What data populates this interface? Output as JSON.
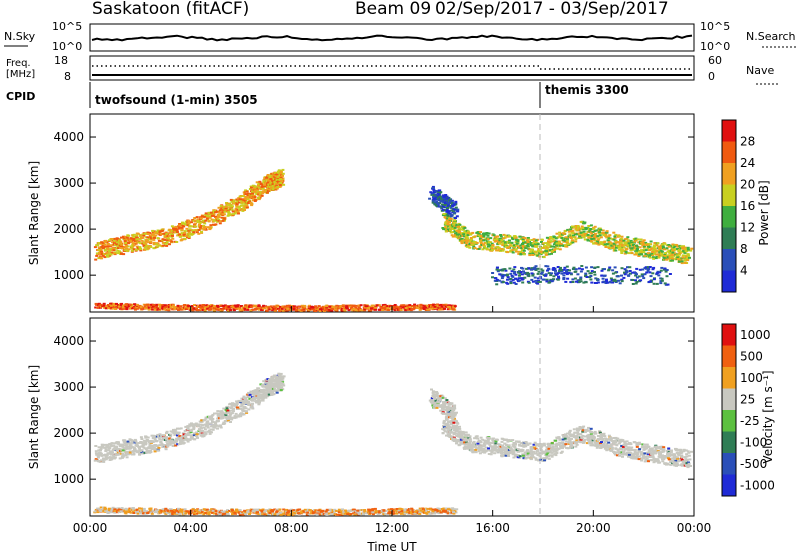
{
  "header": {
    "station": "Saskatoon (fitACF)",
    "beam": "Beam 09",
    "date_range": "02/Sep/2017 - 03/Sep/2017"
  },
  "panels": {
    "nsky_label": "N.Sky",
    "nsky_ticks": [
      "10^5",
      "10^0"
    ],
    "nsearch_label": "N.Search",
    "freq_label": "Freq.",
    "freq_unit": "[MHz]",
    "freq_ticks": [
      "18",
      "8"
    ],
    "nave_ticks": [
      "60",
      "0"
    ],
    "nave_label": "Nave",
    "cpid_label": "CPID",
    "cpid_mode1": "twofsound (1-min) 3505",
    "cpid_mode2": "themis 3300"
  },
  "colors": {
    "power": [
      "#1f2bd6",
      "#2a4fb8",
      "#2f7d55",
      "#3fae3f",
      "#c8d020",
      "#f0a020",
      "#f05a10",
      "#e01010"
    ],
    "velocity": [
      "#1f2bd6",
      "#2a4fb8",
      "#2f7d55",
      "#5cc040",
      "#c8c8c0",
      "#f0a020",
      "#f06010",
      "#e01010"
    ]
  },
  "chart_data": [
    {
      "type": "heatmap",
      "panel": "power",
      "ylabel": "Slant Range [km]",
      "yticks": [
        "4000",
        "3000",
        "2000",
        "1000"
      ],
      "colorbar_label": "Power [dB]",
      "colorbar_ticks": [
        "28",
        "24",
        "20",
        "16",
        "12",
        "8",
        "4"
      ],
      "xticks": [
        "00:00",
        "04:00",
        "08:00",
        "12:00",
        "16:00",
        "20:00",
        "00:00"
      ],
      "xlim_hours": [
        0,
        24
      ],
      "ylim_km": [
        200,
        4500
      ],
      "features": [
        {
          "x": [
            0.2,
            1.5,
            3.0,
            4.5,
            6.0,
            7.0,
            7.6
          ],
          "y": [
            1550,
            1700,
            1850,
            2150,
            2600,
            3000,
            3150
          ],
          "level": 5
        },
        {
          "x": [
            14.0,
            15.0,
            16.5,
            18.0,
            19.5,
            21.0,
            22.5,
            23.8
          ],
          "y": [
            2200,
            1800,
            1700,
            1600,
            2000,
            1700,
            1550,
            1450
          ],
          "level": 4
        },
        {
          "x": [
            13.5,
            14.5
          ],
          "y": [
            2800,
            2400
          ],
          "level": 1
        },
        {
          "x": [
            16.0,
            19.0,
            23.0
          ],
          "y": [
            1000,
            1050,
            1000
          ],
          "level": 1
        },
        {
          "x": [
            0.2,
            3.0,
            6.0,
            9.0,
            12.0,
            14.5
          ],
          "y": [
            350,
            320,
            310,
            300,
            320,
            330
          ],
          "level": 6
        }
      ]
    },
    {
      "type": "heatmap",
      "panel": "velocity",
      "ylabel": "Slant Range [km]",
      "yticks": [
        "4000",
        "3000",
        "2000",
        "1000"
      ],
      "xlabel": "Time UT",
      "colorbar_label": "Velocity [m s⁻¹]",
      "colorbar_ticks": [
        "1000",
        "500",
        "100",
        "25",
        "-25",
        "-100",
        "-500",
        "-1000"
      ],
      "xticks": [
        "00:00",
        "04:00",
        "08:00",
        "12:00",
        "16:00",
        "20:00",
        "00:00"
      ],
      "xlim_hours": [
        0,
        24
      ],
      "ylim_km": [
        200,
        4500
      ],
      "features": [
        {
          "x": [
            0.2,
            1.5,
            3.0,
            4.5,
            6.0,
            7.0,
            7.6
          ],
          "y": [
            1550,
            1700,
            1850,
            2150,
            2600,
            3000,
            3150
          ],
          "level": 4
        },
        {
          "x": [
            14.0,
            15.0,
            16.5,
            18.0,
            19.5,
            21.0,
            22.5,
            23.8
          ],
          "y": [
            2200,
            1800,
            1700,
            1600,
            2000,
            1700,
            1550,
            1450
          ],
          "level": 4
        },
        {
          "x": [
            13.5,
            14.5
          ],
          "y": [
            2800,
            2400
          ],
          "level": 4
        },
        {
          "x": [
            0.2,
            3.0,
            6.0,
            9.0,
            12.0,
            14.5
          ],
          "y": [
            350,
            320,
            310,
            300,
            320,
            330
          ],
          "level": 5
        }
      ]
    }
  ]
}
